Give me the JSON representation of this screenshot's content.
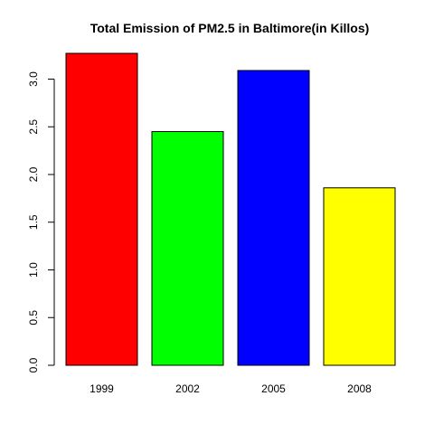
{
  "chart_data": {
    "type": "bar",
    "title": "Total Emission of PM2.5 in Baltimore(in Killos)",
    "xlabel": "",
    "ylabel": "",
    "categories": [
      "1999",
      "2002",
      "2005",
      "2008"
    ],
    "values": [
      3.27,
      2.45,
      3.09,
      1.86
    ],
    "colors": [
      "#ff0000",
      "#00ff00",
      "#0000ff",
      "#ffff00"
    ],
    "ylim": [
      0,
      3.27
    ],
    "yticks": [
      0.0,
      0.5,
      1.0,
      1.5,
      2.0,
      2.5,
      3.0
    ],
    "ytick_labels": [
      "0.0",
      "0.5",
      "1.0",
      "1.5",
      "2.0",
      "2.5",
      "3.0"
    ],
    "grid": false,
    "legend": "none"
  }
}
